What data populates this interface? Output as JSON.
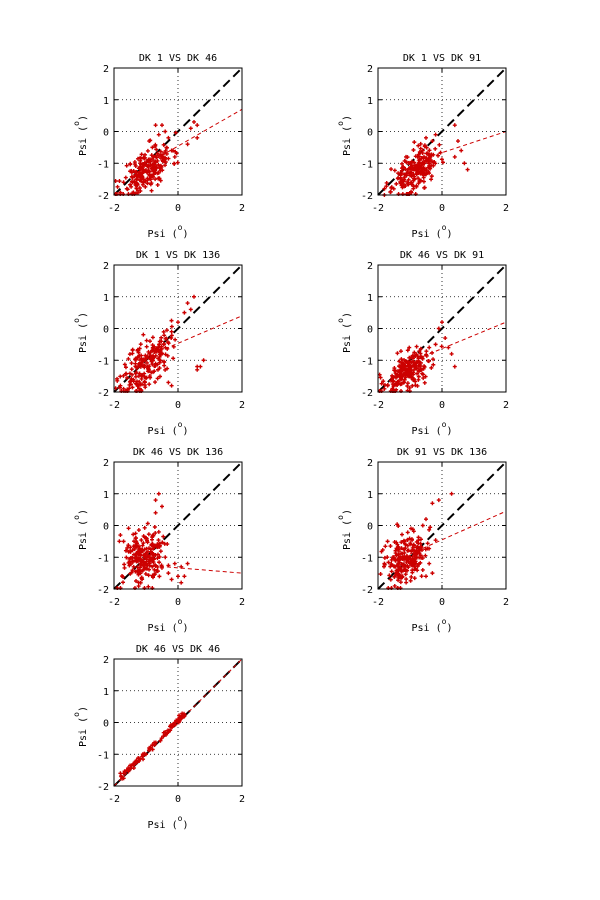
{
  "colors": {
    "points": "#cc0000",
    "fit": "#cc0000",
    "identity": "#000000",
    "frame": "#000000"
  },
  "chart_data": [
    {
      "type": "scatter",
      "title": "DK  1 VS DK 46",
      "xlabel": "Psi (",
      "xlabel_sup": "o",
      "xlabel_end": ")",
      "ylabel": "Psi (",
      "ylabel_sup": "o",
      "ylabel_end": ")",
      "xlim": [
        -2,
        2
      ],
      "ylim": [
        -2,
        2
      ],
      "xticks": [
        "-2",
        "0",
        "2"
      ],
      "yticks": [
        "-2",
        "-1",
        "0",
        "1",
        "2"
      ],
      "grid": true,
      "identity_line": [
        [
          -2,
          -2
        ],
        [
          2,
          2
        ]
      ],
      "fit_line": [
        [
          -1.1,
          -1.1
        ],
        [
          2,
          0.7
        ]
      ],
      "cloud": {
        "seed": 11,
        "n": 220,
        "cx": -0.95,
        "cy": -1.2,
        "sx": 0.38,
        "sy": 0.32,
        "slope": 0.6
      },
      "points": [
        [
          -0.7,
          0.2
        ],
        [
          -0.5,
          0.2
        ],
        [
          -0.4,
          0.0
        ],
        [
          -0.6,
          -0.1
        ],
        [
          -0.3,
          -0.2
        ],
        [
          0.5,
          0.3
        ],
        [
          0.6,
          0.2
        ],
        [
          0.4,
          0.1
        ],
        [
          0.3,
          -0.4
        ],
        [
          0.6,
          -0.2
        ],
        [
          -0.2,
          -0.6
        ],
        [
          -0.1,
          -0.8
        ],
        [
          -0.9,
          -0.3
        ],
        [
          -0.8,
          -0.5
        ],
        [
          -1.6,
          -1.8
        ],
        [
          -1.7,
          -1.6
        ]
      ]
    },
    {
      "type": "scatter",
      "title": "DK  1 VS DK 91",
      "xlabel": "Psi (",
      "xlabel_sup": "o",
      "xlabel_end": ")",
      "ylabel": "Psi (",
      "ylabel_sup": "o",
      "ylabel_end": ")",
      "xlim": [
        -2,
        2
      ],
      "ylim": [
        -2,
        2
      ],
      "xticks": [
        "-2",
        "0",
        "2"
      ],
      "yticks": [
        "-2",
        "-1",
        "0",
        "1",
        "2"
      ],
      "grid": true,
      "identity_line": [
        [
          -2,
          -2
        ],
        [
          2,
          2
        ]
      ],
      "fit_line": [
        [
          -1.0,
          -1.0
        ],
        [
          2,
          0.0
        ]
      ],
      "cloud": {
        "seed": 23,
        "n": 220,
        "cx": -0.85,
        "cy": -1.25,
        "sx": 0.35,
        "sy": 0.3,
        "slope": 0.5
      },
      "points": [
        [
          0.4,
          0.2
        ],
        [
          0.5,
          -0.3
        ],
        [
          0.6,
          -0.6
        ],
        [
          0.8,
          -1.2
        ],
        [
          0.7,
          -1.0
        ],
        [
          0.4,
          -0.8
        ],
        [
          -0.3,
          -0.3
        ],
        [
          -0.2,
          -0.1
        ],
        [
          -0.5,
          -0.2
        ],
        [
          -0.6,
          -0.6
        ],
        [
          -1.6,
          -1.9
        ],
        [
          -1.8,
          -2.0
        ]
      ]
    },
    {
      "type": "scatter",
      "title": "DK  1 VS DK 136",
      "xlabel": "Psi (",
      "xlabel_sup": "o",
      "xlabel_end": ")",
      "ylabel": "Psi (",
      "ylabel_sup": "o",
      "ylabel_end": ")",
      "xlim": [
        -2,
        2
      ],
      "ylim": [
        -2,
        2
      ],
      "xticks": [
        "-2",
        "0",
        "2"
      ],
      "yticks": [
        "-2",
        "-1",
        "0",
        "1",
        "2"
      ],
      "grid": true,
      "identity_line": [
        [
          -2,
          -2
        ],
        [
          2,
          2
        ]
      ],
      "fit_line": [
        [
          -1.0,
          -0.9
        ],
        [
          2,
          0.4
        ]
      ],
      "cloud": {
        "seed": 37,
        "n": 210,
        "cx": -1.0,
        "cy": -1.1,
        "sx": 0.38,
        "sy": 0.4,
        "slope": 0.8
      },
      "points": [
        [
          0.3,
          0.8
        ],
        [
          0.5,
          1.0
        ],
        [
          0.4,
          0.6
        ],
        [
          0.2,
          0.5
        ],
        [
          0.0,
          0.2
        ],
        [
          -0.2,
          -0.1
        ],
        [
          0.6,
          -1.2
        ],
        [
          0.7,
          -1.2
        ],
        [
          0.8,
          -1.0
        ],
        [
          0.6,
          -1.3
        ],
        [
          -0.3,
          -1.7
        ],
        [
          -0.2,
          -1.8
        ],
        [
          -1.7,
          -1.9
        ],
        [
          -1.8,
          -1.8
        ]
      ]
    },
    {
      "type": "scatter",
      "title": "DK 46 VS DK 91",
      "xlabel": "Psi (",
      "xlabel_sup": "o",
      "xlabel_end": ")",
      "ylabel": "Psi (",
      "ylabel_sup": "o",
      "ylabel_end": ")",
      "xlim": [
        -2,
        2
      ],
      "ylim": [
        -2,
        2
      ],
      "xticks": [
        "-2",
        "0",
        "2"
      ],
      "yticks": [
        "-2",
        "-1",
        "0",
        "1",
        "2"
      ],
      "grid": true,
      "identity_line": [
        [
          -2,
          -2
        ],
        [
          2,
          2
        ]
      ],
      "fit_line": [
        [
          -1.0,
          -1.05
        ],
        [
          2,
          0.2
        ]
      ],
      "cloud": {
        "seed": 53,
        "n": 220,
        "cx": -1.05,
        "cy": -1.35,
        "sx": 0.38,
        "sy": 0.3,
        "slope": 0.5
      },
      "points": [
        [
          -0.1,
          0.0
        ],
        [
          0.0,
          0.2
        ],
        [
          0.1,
          -0.3
        ],
        [
          0.2,
          -0.6
        ],
        [
          0.3,
          -0.8
        ],
        [
          0.4,
          -1.2
        ],
        [
          -0.2,
          -0.5
        ],
        [
          -0.4,
          -0.6
        ],
        [
          -1.8,
          -1.9
        ],
        [
          -1.7,
          -1.8
        ]
      ]
    },
    {
      "type": "scatter",
      "title": "DK 46 VS DK 136",
      "xlabel": "Psi (",
      "xlabel_sup": "o",
      "xlabel_end": ")",
      "ylabel": "Psi (",
      "ylabel_sup": "o",
      "ylabel_end": ")",
      "xlim": [
        -2,
        2
      ],
      "ylim": [
        -2,
        2
      ],
      "xticks": [
        "-2",
        "0",
        "2"
      ],
      "yticks": [
        "-2",
        "-1",
        "0",
        "1",
        "2"
      ],
      "grid": true,
      "identity_line": [
        [
          -2,
          -2
        ],
        [
          2,
          2
        ]
      ],
      "fit_line": [
        [
          -1.0,
          -1.25
        ],
        [
          2,
          -1.5
        ]
      ],
      "cloud": {
        "seed": 71,
        "n": 230,
        "cx": -1.05,
        "cy": -1.0,
        "sx": 0.35,
        "sy": 0.45,
        "slope": 0.3
      },
      "points": [
        [
          -0.7,
          0.8
        ],
        [
          -0.6,
          1.0
        ],
        [
          -0.5,
          0.6
        ],
        [
          -0.7,
          0.4
        ],
        [
          -0.1,
          -1.2
        ],
        [
          0.1,
          -1.3
        ],
        [
          0.3,
          -1.2
        ],
        [
          0.0,
          -1.6
        ],
        [
          0.1,
          -1.8
        ],
        [
          -0.2,
          -1.7
        ],
        [
          0.2,
          -1.6
        ],
        [
          -0.3,
          -1.5
        ],
        [
          -1.8,
          -0.3
        ],
        [
          -1.7,
          -0.5
        ]
      ]
    },
    {
      "type": "scatter",
      "title": "DK 91 VS DK 136",
      "xlabel": "Psi (",
      "xlabel_sup": "o",
      "xlabel_end": ")",
      "ylabel": "Psi (",
      "ylabel_sup": "o",
      "ylabel_end": ")",
      "xlim": [
        -2,
        2
      ],
      "ylim": [
        -2,
        2
      ],
      "xticks": [
        "-2",
        "0",
        "2"
      ],
      "yticks": [
        "-2",
        "-1",
        "0",
        "1",
        "2"
      ],
      "grid": true,
      "identity_line": [
        [
          -2,
          -2
        ],
        [
          2,
          2
        ]
      ],
      "fit_line": [
        [
          -1.0,
          -0.9
        ],
        [
          2,
          0.45
        ]
      ],
      "cloud": {
        "seed": 89,
        "n": 220,
        "cx": -1.1,
        "cy": -1.05,
        "sx": 0.33,
        "sy": 0.42,
        "slope": 0.6
      },
      "points": [
        [
          -0.3,
          0.7
        ],
        [
          -0.1,
          0.8
        ],
        [
          0.3,
          1.0
        ],
        [
          -0.5,
          0.2
        ],
        [
          -0.6,
          0.0
        ],
        [
          -0.4,
          -1.2
        ],
        [
          -0.3,
          -1.5
        ],
        [
          -0.5,
          -1.6
        ],
        [
          -0.6,
          -1.4
        ],
        [
          -1.8,
          -1.2
        ],
        [
          -1.7,
          -0.5
        ]
      ]
    },
    {
      "type": "scatter",
      "title": "DK 46 VS DK 46",
      "xlabel": "Psi (",
      "xlabel_sup": "o",
      "xlabel_end": ")",
      "ylabel": "Psi (",
      "ylabel_sup": "o",
      "ylabel_end": ")",
      "xlim": [
        -2,
        2
      ],
      "ylim": [
        -2,
        2
      ],
      "xticks": [
        "-2",
        "0",
        "2"
      ],
      "yticks": [
        "-2",
        "-1",
        "0",
        "1",
        "2"
      ],
      "grid": true,
      "identity_line": [
        [
          -2,
          -2
        ],
        [
          2,
          2
        ]
      ],
      "fit_line": [
        [
          -2,
          -2
        ],
        [
          2,
          2
        ]
      ],
      "cloud": {
        "seed": 97,
        "n": 70,
        "cx": -0.3,
        "cy": -0.3,
        "sx": 0.25,
        "sy": 0.0,
        "slope": 1.0,
        "diag": true
      },
      "points": [
        [
          -1.8,
          -1.6
        ],
        [
          -1.7,
          -1.6
        ],
        [
          -1.6,
          -1.5
        ],
        [
          -1.4,
          -1.3
        ],
        [
          -1.3,
          -1.2
        ],
        [
          -1.1,
          -1.0
        ],
        [
          -1.0,
          -1.0
        ],
        [
          -0.9,
          -0.8
        ],
        [
          -0.2,
          -0.1
        ],
        [
          -0.1,
          0.0
        ],
        [
          0.0,
          0.1
        ],
        [
          0.1,
          0.2
        ],
        [
          0.2,
          0.2
        ],
        [
          0.05,
          0.05
        ],
        [
          -0.3,
          -0.3
        ],
        [
          -0.4,
          -0.3
        ]
      ]
    }
  ]
}
